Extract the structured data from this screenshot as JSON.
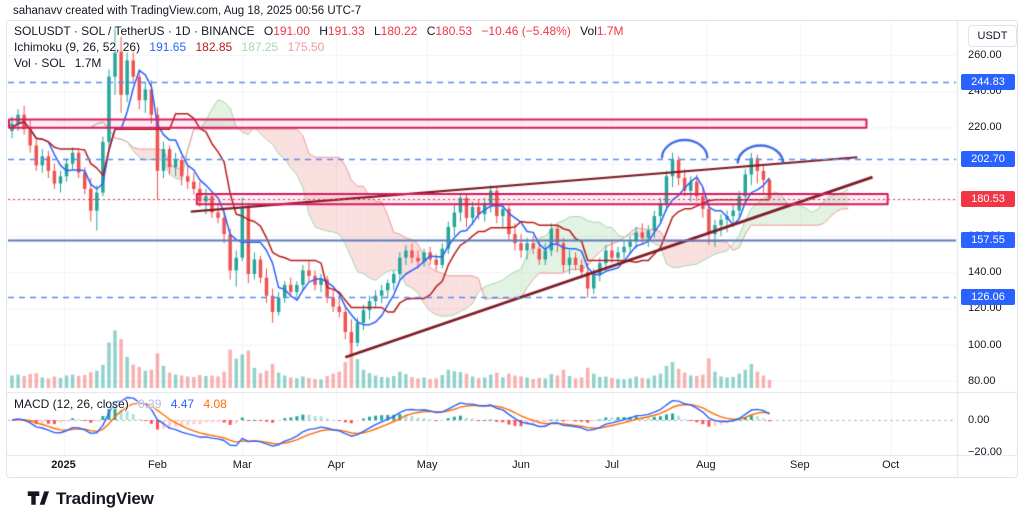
{
  "attribution": "sahanavv created with TradingView.com, Aug 18, 2025 00:56 UTC-7",
  "header": {
    "symbol_title": "SOLUSDT · SOL / TetherUS · 1D · BINANCE",
    "o_label": "O",
    "o": "191.00",
    "h_label": "H",
    "h": "191.33",
    "l_label": "L",
    "l": "180.22",
    "c_label": "C",
    "c": "180.53",
    "change": "−10.46 (−5.48%)",
    "vol_label": "Vol",
    "vol": "1.7M",
    "ichimoku_label": "Ichimoku (9, 26, 52, 26)",
    "ichimoku_conversion": "191.65",
    "ichimoku_base": "182.85",
    "ichimoku_lead_a": "187.25",
    "ichimoku_lead_b": "175.50",
    "vol_row_label": "Vol · SOL",
    "vol_row_value": "1.7M"
  },
  "macd_legend": {
    "label": "MACD (12, 26, close)",
    "hist": "0.39",
    "macd": "4.47",
    "signal": "4.08"
  },
  "price_axis": {
    "currency": "USDT",
    "ticks": [
      260,
      240,
      220,
      200,
      180,
      160,
      140,
      120,
      100,
      80
    ],
    "macd_ticks": [
      {
        "text": "0.00",
        "value": 0
      },
      {
        "text": "−20.00",
        "value": -20
      }
    ],
    "badges": [
      {
        "text": "244.83",
        "price": 244.83,
        "color": "#2962FF"
      },
      {
        "text": "202.70",
        "price": 202.7,
        "color": "#2962FF"
      },
      {
        "text": "180.53",
        "price": 180.53,
        "color": "#F23645"
      },
      {
        "text": "157.55",
        "price": 157.55,
        "color": "#2962FF"
      },
      {
        "text": "126.06",
        "price": 126.06,
        "color": "#2962FF"
      }
    ]
  },
  "time_axis": {
    "labels": [
      {
        "text": "2025",
        "day": 17,
        "bold": true
      },
      {
        "text": "Feb",
        "day": 48
      },
      {
        "text": "Mar",
        "day": 76
      },
      {
        "text": "Apr",
        "day": 107
      },
      {
        "text": "May",
        "day": 137
      },
      {
        "text": "Jun",
        "day": 168
      },
      {
        "text": "Jul",
        "day": 198
      },
      {
        "text": "Aug",
        "day": 229
      },
      {
        "text": "Sep",
        "day": 260
      },
      {
        "text": "Oct",
        "day": 290
      }
    ]
  },
  "footer": {
    "brand": "TradingView"
  },
  "colors": {
    "up": "#26A69A",
    "down": "#EF5350",
    "vol_up": "rgba(38,166,154,0.5)",
    "vol_down": "rgba(239,83,80,0.45)",
    "text_red": "#F23645",
    "badge_blue": "#2962FF",
    "conversion": "#2962FF",
    "base": "#B71C1C",
    "lead_a": "#A5D6A7",
    "lead_b": "#EF9A9A",
    "cloud_green": "rgba(165,214,167,0.32)",
    "cloud_red": "rgba(239,154,154,0.32)",
    "level_dashed_blue": "#5B8DEF",
    "level_solid_blue": "#5D7CB8",
    "drawing_pink": "#D81B60",
    "drawing_pink_fill": "rgba(216,27,96,0.07)",
    "trendline": "#7E1E26",
    "arc_blue": "#2F5FE0",
    "macd_line": "#2962FF",
    "macd_signal": "#FF6D00",
    "hist_up_strong": "#26A69A",
    "hist_up_weak": "#B2DFDB",
    "hist_down_strong": "#FF5252",
    "hist_down_weak": "#FFCDD2",
    "grid": "#f0f3fa",
    "separator": "#e0e3eb",
    "macd_hist_value": "#B0BCD9"
  },
  "chart_data": {
    "type": "candlestick",
    "symbol": "SOLUSDT",
    "exchange": "BINANCE",
    "interval": "1D",
    "quote": "USDT",
    "visible_price_range": [
      80,
      260
    ],
    "visible_time_range": "Dec 2024 – Oct 2025",
    "indicators": [
      "Ichimoku (9, 26, 52, 26)",
      "Volume",
      "MACD (12, 26, close)"
    ],
    "last_bar": {
      "open": 191.0,
      "high": 191.33,
      "low": 180.22,
      "close": 180.53,
      "change": -10.46,
      "change_pct": -5.48,
      "volume_m": 1.7
    },
    "bar_days": 2,
    "candles": [
      [
        218,
        226,
        214,
        222,
        2.6
      ],
      [
        222,
        230,
        218,
        227,
        2.8
      ],
      [
        227,
        232,
        216,
        219,
        2.5
      ],
      [
        219,
        224,
        206,
        210,
        2.9
      ],
      [
        210,
        214,
        196,
        199,
        3.1
      ],
      [
        199,
        208,
        195,
        204,
        2.2
      ],
      [
        204,
        207,
        192,
        196,
        2.0
      ],
      [
        196,
        200,
        186,
        189,
        2.4
      ],
      [
        189,
        196,
        184,
        193,
        2.1
      ],
      [
        193,
        203,
        190,
        200,
        2.6
      ],
      [
        200,
        209,
        197,
        206,
        2.8
      ],
      [
        206,
        208,
        192,
        195,
        2.5
      ],
      [
        195,
        198,
        183,
        186,
        2.7
      ],
      [
        186,
        192,
        168,
        174,
        3.3
      ],
      [
        174,
        188,
        163,
        184,
        3.6
      ],
      [
        184,
        215,
        182,
        212,
        4.8
      ],
      [
        212,
        252,
        208,
        248,
        9.5
      ],
      [
        248,
        275,
        238,
        262,
        12.0
      ],
      [
        262,
        270,
        228,
        238,
        10.2
      ],
      [
        238,
        262,
        234,
        257,
        6.5
      ],
      [
        257,
        263,
        244,
        248,
        4.9
      ],
      [
        248,
        252,
        230,
        235,
        4.4
      ],
      [
        235,
        245,
        228,
        241,
        3.6
      ],
      [
        241,
        246,
        222,
        227,
        3.8
      ],
      [
        227,
        231,
        180,
        196,
        7.2
      ],
      [
        196,
        212,
        192,
        208,
        4.6
      ],
      [
        208,
        210,
        194,
        198,
        3.2
      ],
      [
        198,
        206,
        193,
        202,
        2.8
      ],
      [
        202,
        204,
        188,
        193,
        2.6
      ],
      [
        193,
        199,
        186,
        190,
        2.4
      ],
      [
        190,
        195,
        183,
        186,
        2.3
      ],
      [
        186,
        190,
        176,
        179,
        2.7
      ],
      [
        179,
        186,
        172,
        182,
        2.5
      ],
      [
        182,
        184,
        170,
        173,
        2.6
      ],
      [
        173,
        178,
        167,
        170,
        2.4
      ],
      [
        170,
        174,
        156,
        161,
        3.4
      ],
      [
        161,
        164,
        136,
        141,
        8.0
      ],
      [
        141,
        152,
        132,
        148,
        6.1
      ],
      [
        148,
        181,
        146,
        176,
        7.0
      ],
      [
        176,
        178,
        134,
        139,
        7.8
      ],
      [
        139,
        151,
        136,
        147,
        4.2
      ],
      [
        147,
        149,
        134,
        137,
        3.1
      ],
      [
        137,
        142,
        123,
        127,
        3.6
      ],
      [
        127,
        131,
        112,
        118,
        5.0
      ],
      [
        118,
        129,
        116,
        126,
        3.2
      ],
      [
        126,
        135,
        123,
        133,
        2.6
      ],
      [
        133,
        137,
        126,
        129,
        2.2
      ],
      [
        129,
        135,
        127,
        133,
        2.0
      ],
      [
        133,
        144,
        130,
        141,
        2.4
      ],
      [
        141,
        146,
        135,
        138,
        2.1
      ],
      [
        138,
        141,
        130,
        133,
        1.9
      ],
      [
        133,
        139,
        129,
        136,
        1.8
      ],
      [
        136,
        138,
        123,
        126,
        2.5
      ],
      [
        126,
        130,
        118,
        121,
        3.0
      ],
      [
        121,
        127,
        115,
        118,
        3.4
      ],
      [
        118,
        121,
        103,
        107,
        5.4
      ],
      [
        107,
        114,
        95,
        101,
        9.8
      ],
      [
        101,
        115,
        99,
        112,
        6.0
      ],
      [
        112,
        122,
        108,
        119,
        3.8
      ],
      [
        119,
        127,
        114,
        124,
        3.1
      ],
      [
        124,
        130,
        120,
        127,
        2.6
      ],
      [
        127,
        133,
        123,
        130,
        2.3
      ],
      [
        130,
        136,
        126,
        134,
        2.2
      ],
      [
        134,
        141,
        130,
        139,
        2.5
      ],
      [
        139,
        151,
        136,
        148,
        3.4
      ],
      [
        148,
        155,
        144,
        152,
        2.9
      ],
      [
        152,
        156,
        145,
        148,
        2.3
      ],
      [
        148,
        152,
        142,
        146,
        2.0
      ],
      [
        146,
        153,
        143,
        151,
        2.2
      ],
      [
        151,
        154,
        144,
        147,
        1.9
      ],
      [
        147,
        150,
        141,
        144,
        2.0
      ],
      [
        144,
        156,
        142,
        153,
        2.7
      ],
      [
        153,
        168,
        150,
        165,
        3.8
      ],
      [
        165,
        177,
        160,
        173,
        3.5
      ],
      [
        173,
        184,
        168,
        181,
        3.3
      ],
      [
        181,
        183,
        165,
        170,
        3.0
      ],
      [
        170,
        179,
        166,
        176,
        2.4
      ],
      [
        176,
        180,
        169,
        172,
        2.1
      ],
      [
        172,
        181,
        168,
        178,
        2.2
      ],
      [
        178,
        188,
        173,
        185,
        2.8
      ],
      [
        185,
        187,
        167,
        171,
        3.2
      ],
      [
        171,
        178,
        165,
        175,
        2.2
      ],
      [
        175,
        177,
        157,
        161,
        3.0
      ],
      [
        161,
        167,
        152,
        156,
        2.6
      ],
      [
        156,
        161,
        148,
        152,
        2.4
      ],
      [
        152,
        159,
        147,
        156,
        2.2
      ],
      [
        156,
        160,
        150,
        153,
        1.9
      ],
      [
        153,
        157,
        144,
        147,
        2.1
      ],
      [
        147,
        156,
        144,
        152,
        2.0
      ],
      [
        152,
        167,
        149,
        164,
        2.9
      ],
      [
        164,
        166,
        151,
        156,
        2.6
      ],
      [
        156,
        159,
        140,
        144,
        3.8
      ],
      [
        144,
        152,
        139,
        148,
        2.5
      ],
      [
        148,
        151,
        141,
        144,
        2.0
      ],
      [
        144,
        147,
        137,
        140,
        2.2
      ],
      [
        140,
        145,
        126,
        131,
        4.2
      ],
      [
        131,
        142,
        128,
        139,
        3.0
      ],
      [
        139,
        148,
        135,
        145,
        2.3
      ],
      [
        145,
        155,
        141,
        152,
        2.4
      ],
      [
        152,
        157,
        145,
        148,
        2.1
      ],
      [
        148,
        154,
        144,
        151,
        1.9
      ],
      [
        151,
        157,
        147,
        154,
        1.8
      ],
      [
        154,
        160,
        150,
        157,
        2.0
      ],
      [
        157,
        165,
        153,
        162,
        2.4
      ],
      [
        162,
        167,
        155,
        159,
        2.1
      ],
      [
        159,
        166,
        154,
        163,
        2.0
      ],
      [
        163,
        174,
        159,
        171,
        2.6
      ],
      [
        171,
        181,
        167,
        178,
        3.0
      ],
      [
        178,
        196,
        174,
        193,
        4.6
      ],
      [
        193,
        206,
        187,
        202,
        5.4
      ],
      [
        202,
        204,
        188,
        192,
        4.0
      ],
      [
        192,
        197,
        182,
        185,
        3.2
      ],
      [
        185,
        193,
        179,
        190,
        2.6
      ],
      [
        190,
        194,
        179,
        182,
        2.5
      ],
      [
        182,
        187,
        170,
        175,
        2.8
      ],
      [
        175,
        178,
        155,
        161,
        6.2
      ],
      [
        161,
        169,
        154,
        166,
        3.4
      ],
      [
        166,
        172,
        160,
        169,
        2.4
      ],
      [
        169,
        174,
        162,
        171,
        2.2
      ],
      [
        171,
        177,
        165,
        174,
        2.3
      ],
      [
        174,
        185,
        170,
        182,
        3.0
      ],
      [
        182,
        197,
        178,
        194,
        3.8
      ],
      [
        194,
        206,
        188,
        203,
        5.0
      ],
      [
        203,
        205,
        189,
        196,
        3.4
      ],
      [
        196,
        199,
        183,
        191,
        2.6
      ],
      [
        191,
        191.33,
        180.22,
        180.53,
        1.7
      ]
    ],
    "levels": [
      {
        "price": 244.83,
        "style": "dashed"
      },
      {
        "price": 202.7,
        "style": "dashed"
      },
      {
        "price": 180.53,
        "style": "dotted",
        "role": "last-price"
      },
      {
        "price": 157.55,
        "style": "solid"
      },
      {
        "price": 126.06,
        "style": "dashed"
      }
    ],
    "drawings": {
      "bands": [
        {
          "x1_day": -1,
          "x2_day": 282,
          "price_top": 224.3,
          "price_bottom": 219.8
        },
        {
          "x1_day": 61,
          "x2_day": 289,
          "price_top": 183.2,
          "price_bottom": 177.6
        }
      ],
      "trendlines": [
        {
          "x1_day": 59,
          "price1": 173.5,
          "x2_day": 279,
          "price2": 203.5
        },
        {
          "x1_day": 110,
          "price1": 93.0,
          "x2_day": 284,
          "price2": 192.5
        }
      ],
      "arcs": [
        {
          "day_center": 222,
          "price_top": 213,
          "rx_days": 7.5,
          "ry_price": 10
        },
        {
          "day_center": 247,
          "price_top": 210,
          "rx_days": 7.5,
          "ry_price": 10
        }
      ]
    }
  }
}
